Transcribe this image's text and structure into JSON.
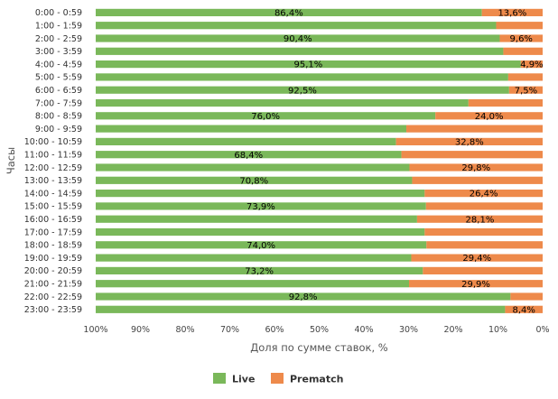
{
  "chart_data": {
    "type": "bar",
    "orientation": "horizontal",
    "stacked": "percent",
    "ylabel": "Часы",
    "xlabel": "Доля по сумме ставок, %",
    "x_ticks": [
      "100%",
      "90%",
      "80%",
      "70%",
      "60%",
      "50%",
      "40%",
      "30%",
      "20%",
      "10%",
      "0%"
    ],
    "x_reversed": true,
    "xlim": [
      0,
      100
    ],
    "legend_position": "bottom",
    "grid": false,
    "categories": [
      "0:00 - 0:59",
      "1:00 - 1:59",
      "2:00 - 2:59",
      "3:00 - 3:59",
      "4:00 - 4:59",
      "5:00 - 5:59",
      "6:00 - 6:59",
      "7:00 - 7:59",
      "8:00 - 8:59",
      "9:00 - 9:59",
      "10:00 - 10:59",
      "11:00 - 11:59",
      "12:00 - 12:59",
      "13:00 - 13:59",
      "14:00 - 14:59",
      "15:00 - 15:59",
      "16:00 - 16:59",
      "17:00 - 17:59",
      "18:00 - 18:59",
      "19:00 - 19:59",
      "20:00 - 20:59",
      "21:00 - 21:59",
      "22:00 - 22:59",
      "23:00 - 23:59"
    ],
    "series": [
      {
        "name": "Live",
        "color": "#7ab85a",
        "values": [
          86.4,
          89.6,
          90.4,
          91.2,
          95.1,
          92.3,
          92.5,
          83.4,
          76.0,
          69.5,
          67.2,
          68.4,
          70.2,
          70.8,
          73.6,
          73.9,
          71.9,
          73.6,
          74.0,
          70.6,
          73.2,
          70.1,
          92.8,
          91.6
        ],
        "labels": [
          "86,4%",
          "",
          "90,4%",
          "",
          "95,1%",
          "",
          "92,5%",
          "",
          "76,0%",
          "",
          "",
          "68,4%",
          "",
          "70,8%",
          "",
          "73,9%",
          "",
          "",
          "74,0%",
          "",
          "73,2%",
          "",
          "92,8%",
          ""
        ]
      },
      {
        "name": "Prematch",
        "color": "#ee8a4b",
        "values": [
          13.6,
          10.4,
          9.6,
          8.8,
          4.9,
          7.7,
          7.5,
          16.6,
          24.0,
          30.5,
          32.8,
          31.6,
          29.8,
          29.2,
          26.4,
          26.1,
          28.1,
          26.4,
          26.0,
          29.4,
          26.8,
          29.9,
          7.2,
          8.4
        ],
        "labels": [
          "13,6%",
          "",
          "9,6%",
          "",
          "4,9%",
          "",
          "7,5%",
          "",
          "24,0%",
          "",
          "32,8%",
          "",
          "29,8%",
          "",
          "26,4%",
          "",
          "28,1%",
          "",
          "",
          "29,4%",
          "",
          "29,9%",
          "",
          "8,4%"
        ]
      }
    ]
  }
}
